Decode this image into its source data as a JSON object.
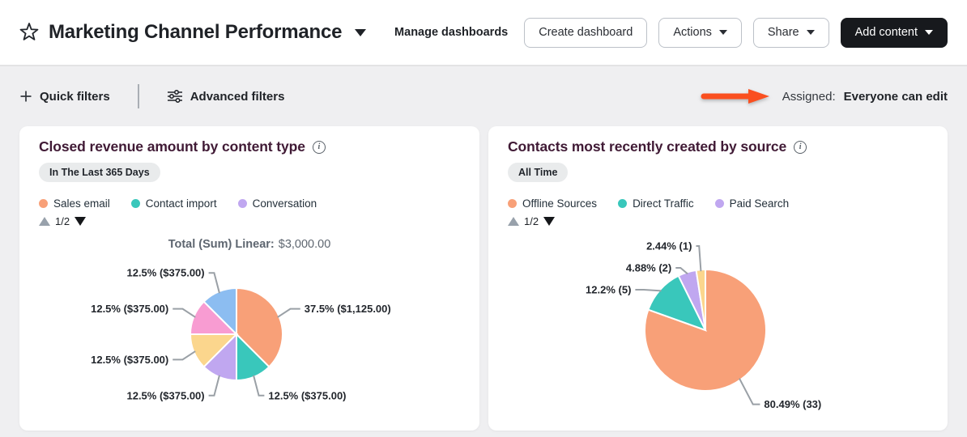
{
  "header": {
    "title": "Marketing Channel Performance",
    "manage_dashboards_label": "Manage dashboards",
    "create_dashboard_label": "Create dashboard",
    "actions_label": "Actions",
    "share_label": "Share",
    "add_content_label": "Add content"
  },
  "filter_bar": {
    "quick_filters_label": "Quick filters",
    "advanced_filters_label": "Advanced filters",
    "assigned_label": "Assigned:",
    "assigned_value": "Everyone can edit",
    "arrow_color": "#fa4f1f"
  },
  "chart_data": [
    {
      "type": "pie",
      "title": "Closed revenue amount by content type",
      "time_range": "In The Last 365 Days",
      "legend_position": "top",
      "legend_pagination": "1/2",
      "legend": [
        {
          "name": "Sales email",
          "color": "#f8a078"
        },
        {
          "name": "Contact import",
          "color": "#39c7bb"
        },
        {
          "name": "Conversation",
          "color": "#c0a7f0"
        }
      ],
      "total_label": "Total (Sum) Linear:",
      "total_value": "$3,000.00",
      "slices": [
        {
          "name": "Sales email",
          "label": "37.5% ($1,125.00)",
          "percent": 37.5,
          "value_text": "$1,125.00",
          "color": "#f8a078"
        },
        {
          "name": "Contact import",
          "label": "12.5% ($375.00)",
          "percent": 12.5,
          "value_text": "$375.00",
          "color": "#39c7bb"
        },
        {
          "name": "Conversation",
          "label": "12.5% ($375.00)",
          "percent": 12.5,
          "value_text": "$375.00",
          "color": "#c0a7f0"
        },
        {
          "label": "12.5% ($375.00)",
          "percent": 12.5,
          "value_text": "$375.00",
          "color": "#fbd68d"
        },
        {
          "label": "12.5% ($375.00)",
          "percent": 12.5,
          "value_text": "$375.00",
          "color": "#f89cd2"
        },
        {
          "label": "12.5% ($375.00)",
          "percent": 12.5,
          "value_text": "$375.00",
          "color": "#8cbdf1"
        }
      ]
    },
    {
      "type": "pie",
      "title": "Contacts most recently created by source",
      "time_range": "All Time",
      "legend_position": "top",
      "legend_pagination": "1/2",
      "legend": [
        {
          "name": "Offline Sources",
          "color": "#f8a078"
        },
        {
          "name": "Direct Traffic",
          "color": "#39c7bb"
        },
        {
          "name": "Paid Search",
          "color": "#c0a7f0"
        }
      ],
      "slices": [
        {
          "name": "Offline Sources",
          "label": "80.49% (33)",
          "percent": 80.49,
          "count": 33,
          "color": "#f8a078"
        },
        {
          "name": "Direct Traffic",
          "label": "12.2% (5)",
          "percent": 12.2,
          "count": 5,
          "color": "#39c7bb"
        },
        {
          "name": "Paid Search",
          "label": "4.88% (2)",
          "percent": 4.88,
          "count": 2,
          "color": "#c0a7f0"
        },
        {
          "label": "2.44% (1)",
          "percent": 2.44,
          "count": 1,
          "color": "#fbd68d"
        }
      ]
    }
  ]
}
